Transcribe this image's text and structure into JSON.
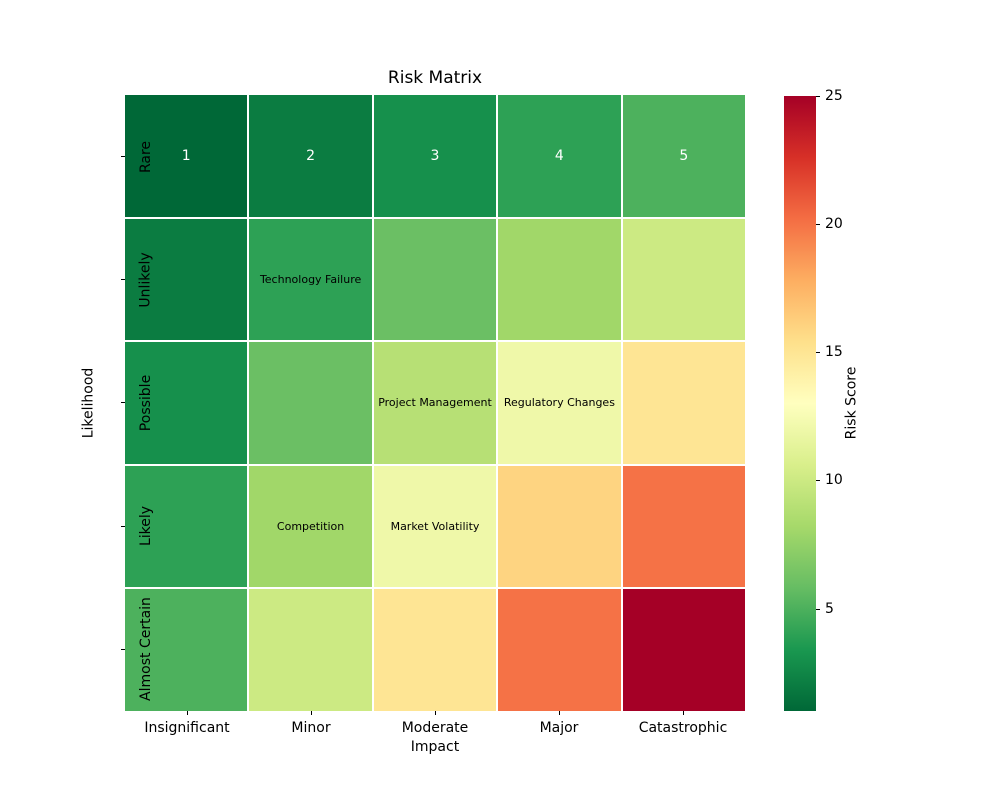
{
  "figure": {
    "background": "#ffffff",
    "text_color": "#000000"
  },
  "chart_data": {
    "type": "heatmap",
    "title": "Risk Matrix",
    "xlabel": "Impact",
    "ylabel": "Likelihood",
    "x_categories": [
      "Insignificant",
      "Minor",
      "Moderate",
      "Major",
      "Catastrophic"
    ],
    "y_categories": [
      "Rare",
      "Unlikely",
      "Possible",
      "Likely",
      "Almost Certain"
    ],
    "values": [
      [
        1,
        2,
        3,
        4,
        5
      ],
      [
        2,
        4,
        6,
        8,
        10
      ],
      [
        3,
        6,
        9,
        12,
        15
      ],
      [
        4,
        8,
        12,
        16,
        20
      ],
      [
        5,
        10,
        15,
        20,
        25
      ]
    ],
    "annotations": [
      {
        "row": 0,
        "col": 0,
        "text": "1",
        "style": "value"
      },
      {
        "row": 0,
        "col": 1,
        "text": "2",
        "style": "value"
      },
      {
        "row": 0,
        "col": 2,
        "text": "3",
        "style": "value"
      },
      {
        "row": 0,
        "col": 3,
        "text": "4",
        "style": "value"
      },
      {
        "row": 0,
        "col": 4,
        "text": "5",
        "style": "value"
      },
      {
        "row": 1,
        "col": 1,
        "text": "Technology Failure",
        "style": "label"
      },
      {
        "row": 2,
        "col": 2,
        "text": "Project Management",
        "style": "label"
      },
      {
        "row": 2,
        "col": 3,
        "text": "Regulatory Changes",
        "style": "label"
      },
      {
        "row": 3,
        "col": 1,
        "text": "Competition",
        "style": "label"
      },
      {
        "row": 3,
        "col": 2,
        "text": "Market Volatility",
        "style": "label"
      }
    ],
    "annotation_colors": {
      "value": "#ffffff",
      "label": "#000000"
    },
    "colormap": {
      "name": "RdYlGn_r",
      "stops_high_to_low": [
        "#a50026",
        "#d73027",
        "#f46d43",
        "#fdae61",
        "#fee08b",
        "#ffffbf",
        "#d9ef8b",
        "#a6d96a",
        "#66bd63",
        "#1a9850",
        "#006837"
      ]
    },
    "linecolor": "#ffffff",
    "colorbar": {
      "label": "Risk Score",
      "ticks": [
        25,
        20,
        15,
        10,
        5
      ],
      "vmin": 1,
      "vmax": 25
    },
    "legend": "none",
    "grid": false
  }
}
